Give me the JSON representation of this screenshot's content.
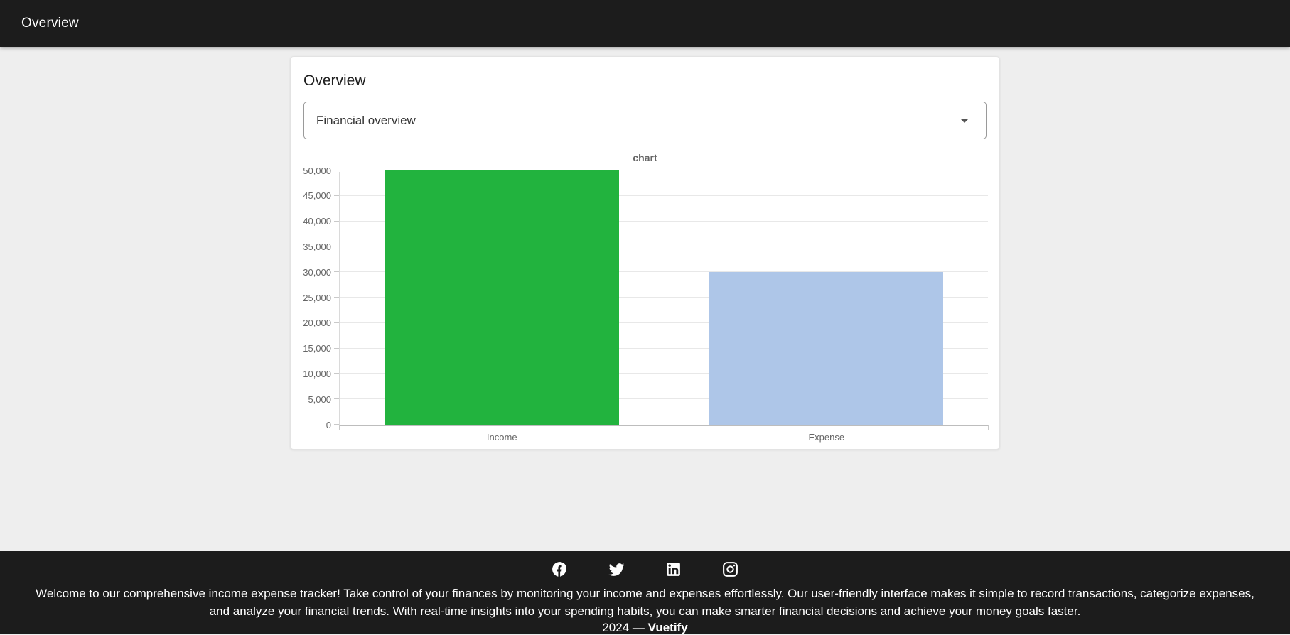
{
  "app_bar": {
    "title": "Overview"
  },
  "card": {
    "title": "Overview",
    "select": {
      "value": "Financial overview"
    }
  },
  "chart_data": {
    "type": "bar",
    "title": "chart",
    "categories": [
      "Income",
      "Expense"
    ],
    "values": [
      50000,
      30000
    ],
    "bar_colors": [
      "#22b33e",
      "#aec6e8"
    ],
    "xlabel": "",
    "ylabel": "",
    "ylim": [
      0,
      50000
    ],
    "ytick_step": 5000,
    "ytick_labels": [
      "0",
      "5,000",
      "10,000",
      "15,000",
      "20,000",
      "25,000",
      "30,000",
      "35,000",
      "40,000",
      "45,000",
      "50,000"
    ],
    "grid": true,
    "legend": false
  },
  "footer": {
    "social_icons": [
      "facebook-icon",
      "twitter-icon",
      "linkedin-icon",
      "instagram-icon"
    ],
    "description": "Welcome to our comprehensive income expense tracker! Take control of your finances by monitoring your income and expenses effortlessly. Our user-friendly interface makes it simple to record transactions, categorize expenses, and analyze your financial trends. With real-time insights into your spending habits, you can make smarter financial decisions and achieve your money goals faster.",
    "copyright_prefix": "2024 —",
    "brand": "Vuetify"
  }
}
